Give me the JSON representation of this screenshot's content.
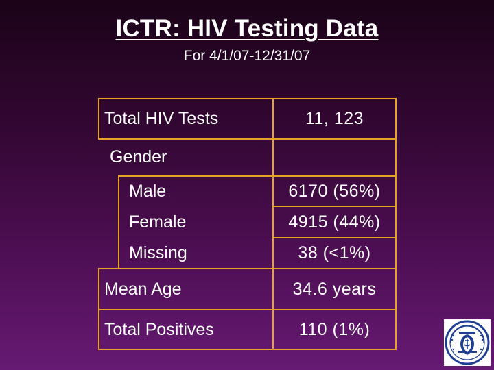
{
  "slide": {
    "title": "ICTR: HIV Testing Data",
    "subtitle": "For 4/1/07-12/31/07"
  },
  "table": {
    "rows": [
      {
        "label": "Total HIV Tests",
        "value": "11, 123"
      },
      {
        "label": "Gender",
        "value": ""
      },
      {
        "label": "Male",
        "value": "6170 (56%)"
      },
      {
        "label": "Female",
        "value": "4915 (44%)"
      },
      {
        "label": "Missing",
        "value": "38 (<1%)"
      },
      {
        "label": "Mean Age",
        "value": "34.6 years"
      },
      {
        "label": "Total Positives",
        "value": "110 (1%)"
      }
    ]
  },
  "colors": {
    "border": "#e6a321",
    "text": "#ffffff",
    "background_top": "#1b0318",
    "background_bottom": "#661a73"
  },
  "logo": {
    "icon": "university-seal-icon"
  }
}
